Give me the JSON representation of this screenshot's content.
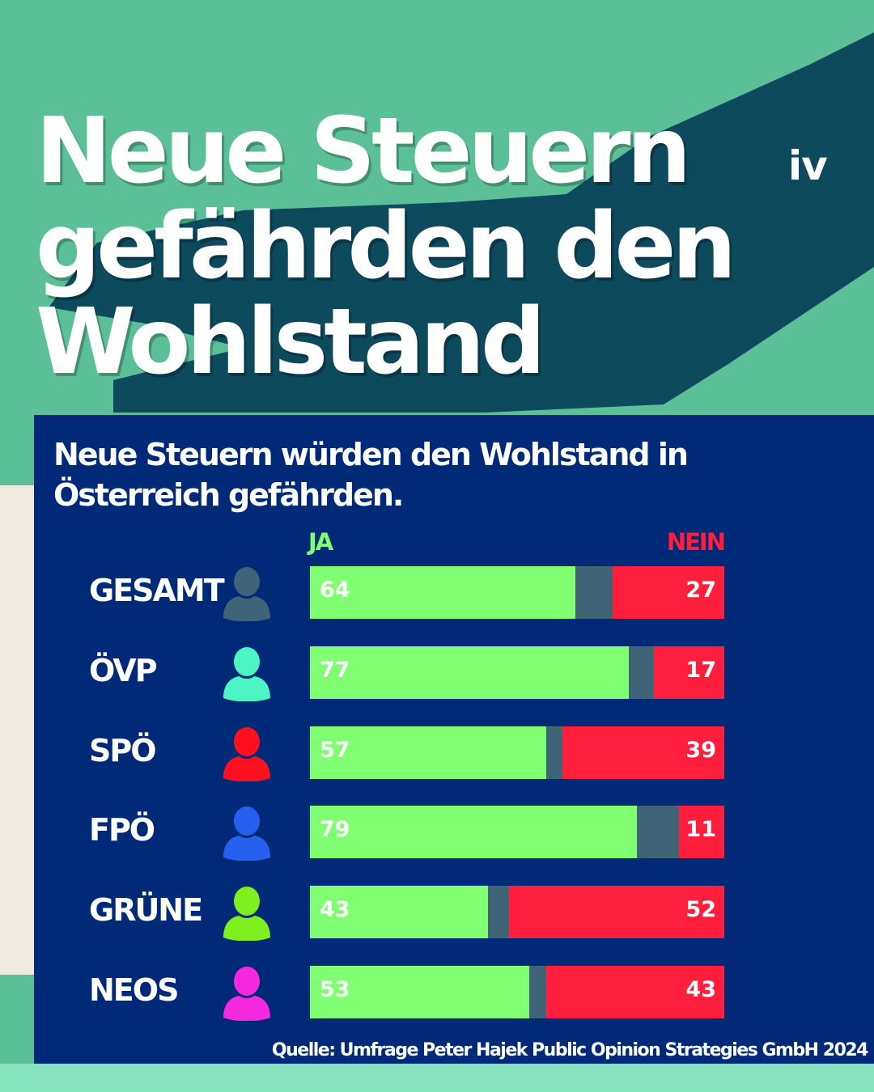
{
  "title_lines": [
    "Neue Steuern",
    "gefährden den",
    "Wohlstand"
  ],
  "logo": "iv",
  "subtitle_lines": [
    "Neue Steuern würden den Wohlstand in",
    "Österreich gefährden."
  ],
  "source": "Quelle: Umfrage Peter Hajek Public Opinion Strategies GmbH 2024",
  "colors": {
    "ja": "#80ff72",
    "nein": "#ff1e3c",
    "other": "#3f6478",
    "panel": "#002a78",
    "background": "#5bbf97"
  },
  "chart_data": {
    "type": "bar",
    "orientation": "horizontal",
    "stacked": true,
    "legend": {
      "ja": "JA",
      "nein": "NEIN"
    },
    "xlim": [
      0,
      100
    ],
    "categories": [
      "GESAMT",
      "ÖVP",
      "SPÖ",
      "FPÖ",
      "GRÜNE",
      "NEOS"
    ],
    "icon_colors": [
      "#3f6478",
      "#4ef5c4",
      "#ff1020",
      "#2560ee",
      "#7ef020",
      "#f52ae0"
    ],
    "series": [
      {
        "name": "JA",
        "values": [
          64,
          77,
          57,
          79,
          43,
          53
        ]
      },
      {
        "values": [
          9,
          6,
          4,
          10,
          5,
          4
        ]
      },
      {
        "name": "NEIN",
        "values": [
          27,
          17,
          39,
          11,
          52,
          43
        ]
      }
    ]
  }
}
